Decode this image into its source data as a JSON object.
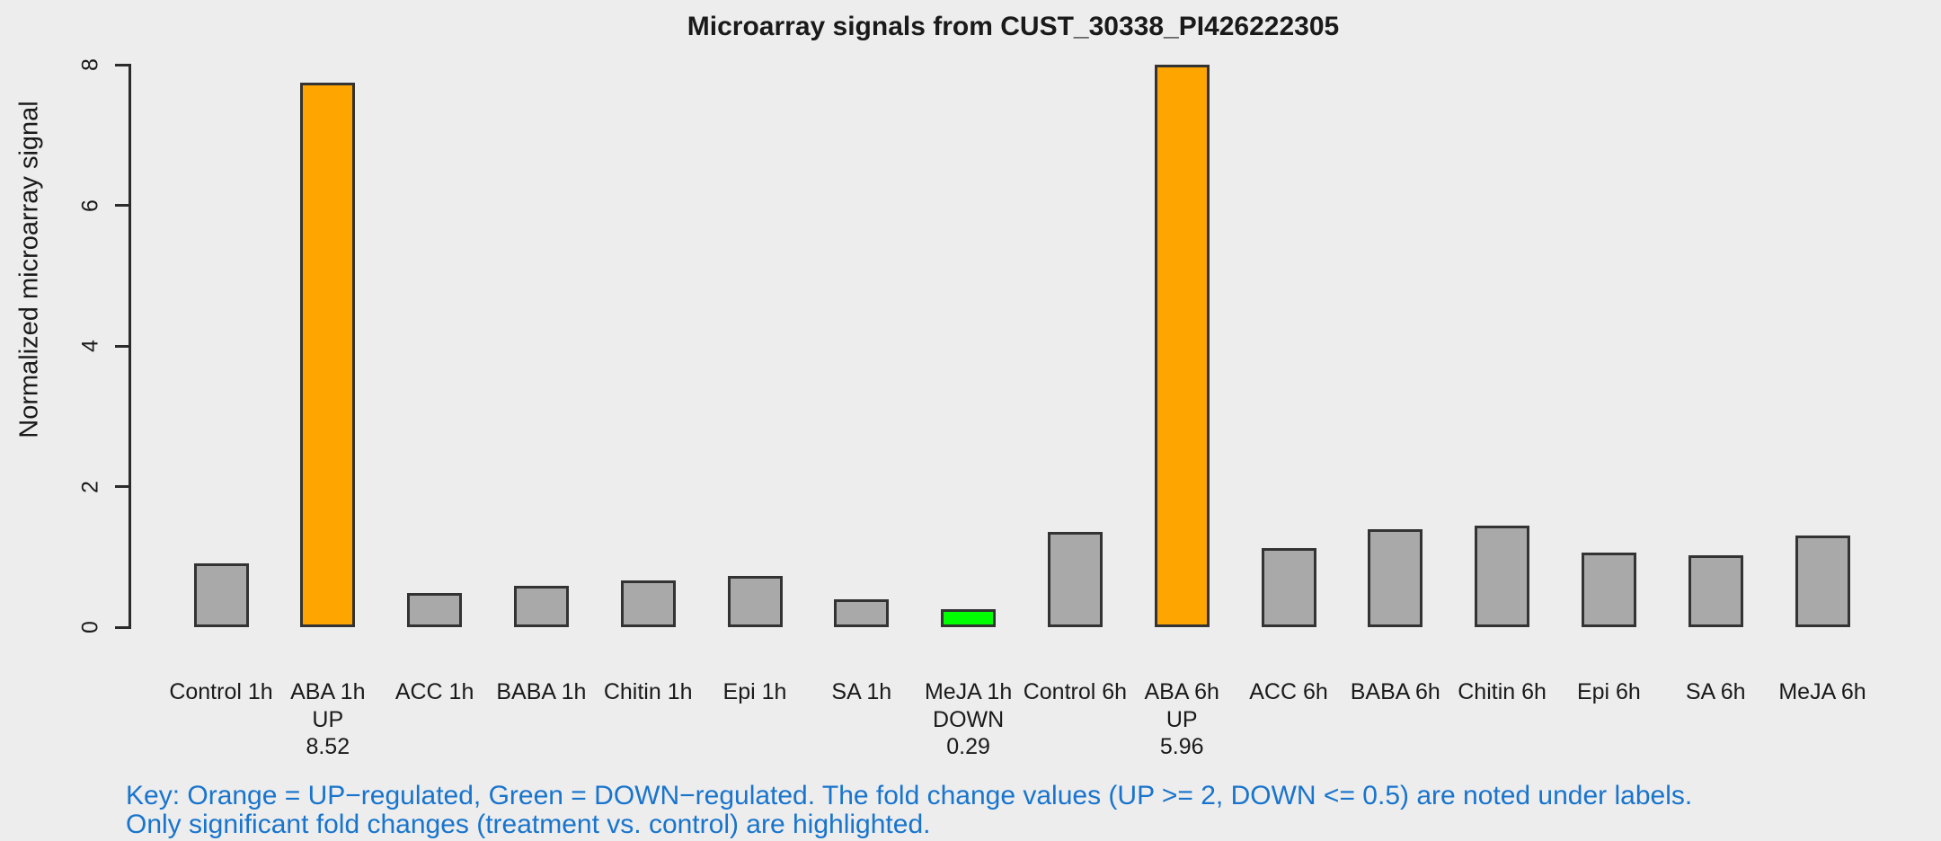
{
  "chart_data": {
    "type": "bar",
    "title": "Microarray signals from CUST_30338_PI426222305",
    "xlabel": "",
    "ylabel": "Normalized microarray signal",
    "ylim": [
      0,
      8
    ],
    "yticks": [
      0,
      2,
      4,
      6,
      8
    ],
    "grid": false,
    "legend_position": "none",
    "bars": [
      {
        "label": "Control 1h",
        "value": 0.91,
        "regulation": "",
        "fold_change": ""
      },
      {
        "label": "ABA 1h",
        "value": 7.75,
        "regulation": "UP",
        "fold_change": "8.52"
      },
      {
        "label": "ACC 1h",
        "value": 0.48,
        "regulation": "",
        "fold_change": ""
      },
      {
        "label": "BABA 1h",
        "value": 0.59,
        "regulation": "",
        "fold_change": ""
      },
      {
        "label": "Chitin 1h",
        "value": 0.66,
        "regulation": "",
        "fold_change": ""
      },
      {
        "label": "Epi 1h",
        "value": 0.73,
        "regulation": "",
        "fold_change": ""
      },
      {
        "label": "SA 1h",
        "value": 0.4,
        "regulation": "",
        "fold_change": ""
      },
      {
        "label": "MeJA 1h",
        "value": 0.26,
        "regulation": "DOWN",
        "fold_change": "0.29"
      },
      {
        "label": "Control 6h",
        "value": 1.35,
        "regulation": "",
        "fold_change": ""
      },
      {
        "label": "ABA 6h",
        "value": 8.05,
        "regulation": "UP",
        "fold_change": "5.96"
      },
      {
        "label": "ACC 6h",
        "value": 1.12,
        "regulation": "",
        "fold_change": ""
      },
      {
        "label": "BABA 6h",
        "value": 1.39,
        "regulation": "",
        "fold_change": ""
      },
      {
        "label": "Chitin 6h",
        "value": 1.44,
        "regulation": "",
        "fold_change": ""
      },
      {
        "label": "Epi 6h",
        "value": 1.06,
        "regulation": "",
        "fold_change": ""
      },
      {
        "label": "SA 6h",
        "value": 1.02,
        "regulation": "",
        "fold_change": ""
      },
      {
        "label": "MeJA 6h",
        "value": 1.3,
        "regulation": "",
        "fold_change": ""
      }
    ],
    "colors": {
      "up": "#FFA500",
      "down": "#00FF00",
      "default": "#A9A9A9",
      "bar_border": "#333333",
      "axis": "#2B2B2B",
      "text": "#1A1A1A",
      "background": "#EDEDED"
    }
  },
  "key": {
    "line1": "Key: Orange = UP−regulated, Green = DOWN−regulated. The fold change values (UP >= 2, DOWN <= 0.5) are noted under labels.",
    "line2": "Only significant fold changes (treatment vs. control) are highlighted.",
    "color": "#1874CD"
  }
}
